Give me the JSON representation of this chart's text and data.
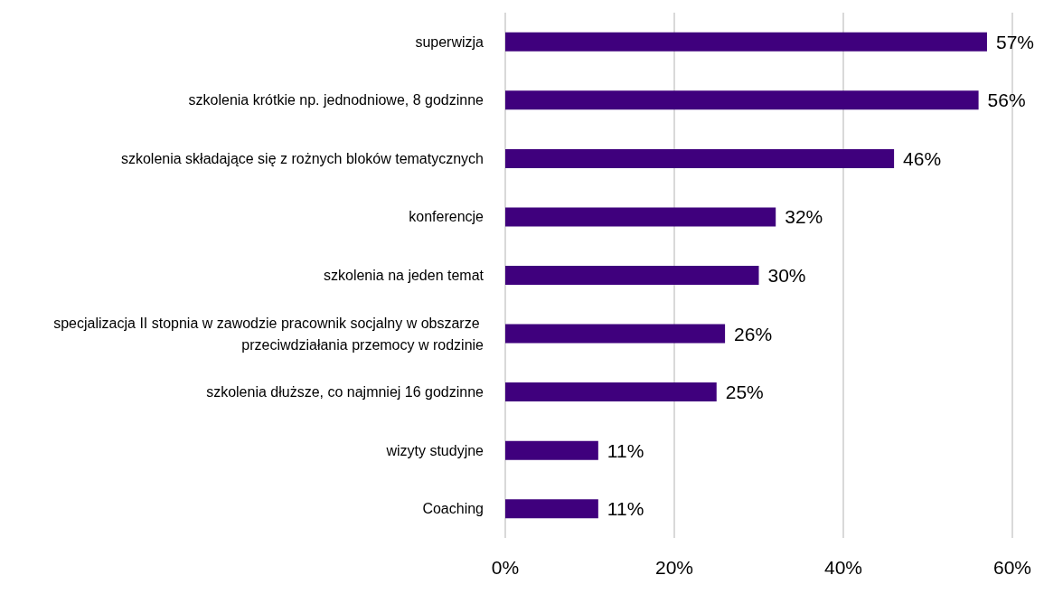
{
  "chart_data": {
    "type": "bar",
    "orientation": "horizontal",
    "categories": [
      "superwizja",
      "szkolenia krótkie np. jednodniowe, 8 godzinne",
      "szkolenia składające się z rożnych bloków tematycznych",
      "konferencje",
      "szkolenia na jeden temat",
      "specjalizacja II stopnia w zawodzie pracownik socjalny w obszarze przeciwdziałania przemocy w rodzinie",
      "szkolenia dłuższe, co najmniej 16 godzinne",
      "wizyty studyjne",
      "Coaching"
    ],
    "values": [
      57,
      56,
      46,
      32,
      30,
      26,
      25,
      11,
      11
    ],
    "value_labels": [
      "57%",
      "56%",
      "46%",
      "32%",
      "30%",
      "26%",
      "25%",
      "11%",
      "11%"
    ],
    "color": "#3f007d",
    "xlim": [
      0,
      60
    ],
    "xticks": [
      {
        "value": 0,
        "label": "0%"
      },
      {
        "value": 20,
        "label": "20%"
      },
      {
        "value": 40,
        "label": "40%"
      },
      {
        "value": 60,
        "label": "60%"
      }
    ],
    "grid": "x"
  }
}
